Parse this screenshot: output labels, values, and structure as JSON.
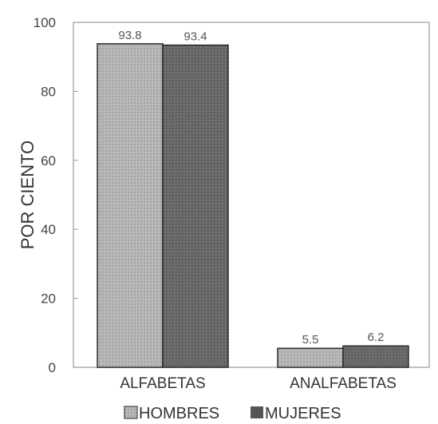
{
  "chart_data": {
    "type": "bar",
    "categories": [
      "ALFABETAS",
      "ANALFABETAS"
    ],
    "series": [
      {
        "name": "HOMBRES",
        "values": [
          93.8,
          5.5
        ],
        "color": "#a8a8a8"
      },
      {
        "name": "MUJERES",
        "values": [
          93.4,
          6.2
        ],
        "color": "#5e5e5e"
      }
    ],
    "ylabel": "POR CIENTO",
    "xlabel": "",
    "ylim": [
      0,
      100
    ],
    "yticks": [
      0,
      20,
      40,
      60,
      80,
      100
    ],
    "legend_position": "bottom",
    "grid": false
  }
}
